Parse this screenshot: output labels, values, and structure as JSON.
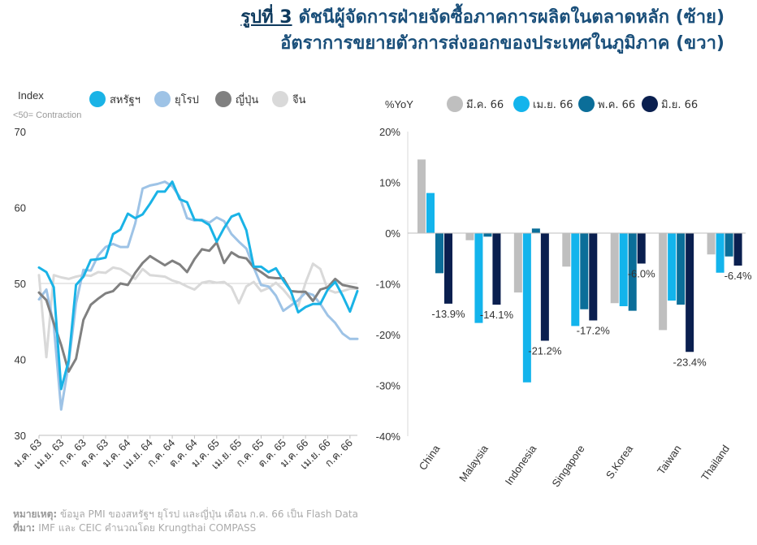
{
  "title": {
    "figure_label": "รูปที่ 3",
    "line1": "ดัชนีผู้จัดการฝ่ายจัดซื้อภาคการผลิตในตลาดหลัก (ซ้าย)",
    "line2": "อัตราการขยายตัวการส่งออกของประเทศในภูมิภาค (ขวา)"
  },
  "footer": {
    "note_label": "หมายเหตุ:",
    "note_text": "ข้อมูล PMI ของสหรัฐฯ ยุโรป และญี่ปุ่น เดือน ก.ค. 66 เป็น Flash Data",
    "source_label": "ที่มา:",
    "source_text": "IMF และ CEIC คำนวณโดย Krungthai COMPASS"
  },
  "chart_data": [
    {
      "type": "line",
      "ylabel": "Index",
      "note": "<50= Contraction",
      "ylim": [
        30,
        70
      ],
      "yticks": [
        30,
        40,
        50,
        60,
        70
      ],
      "reference_line": 50,
      "x_tick_labels": [
        "ม.ค. 63",
        "เม.ย. 63",
        "ก.ค. 63",
        "ต.ค. 63",
        "ม.ค. 64",
        "เม.ย. 64",
        "ก.ค. 64",
        "ต.ค. 64",
        "ม.ค. 65",
        "เม.ย. 65",
        "ก.ค. 65",
        "ต.ค. 65",
        "ม.ค. 66",
        "เม.ย. 66",
        "ก.ค. 66"
      ],
      "grid": false,
      "legend_position": "top",
      "series": [
        {
          "name": "สหรัฐฯ",
          "color": "#1ab3e6",
          "width": 3,
          "values": [
            52.1,
            51.5,
            49.5,
            36.1,
            39.8,
            49.8,
            50.9,
            53.1,
            53.2,
            53.4,
            56.5,
            57.1,
            59.2,
            58.6,
            59.1,
            60.5,
            62.1,
            62.1,
            63.4,
            61.1,
            60.7,
            58.4,
            58.3,
            57.7,
            55.5,
            57.3,
            58.8,
            59.2,
            57.0,
            52.2,
            52.2,
            51.5,
            52.0,
            50.4,
            49.0,
            46.2,
            46.9,
            47.3,
            47.3,
            49.2,
            50.2,
            48.4,
            46.3,
            49.0
          ]
        },
        {
          "name": "ยุโรป",
          "color": "#9ec3e6",
          "width": 3,
          "values": [
            47.9,
            49.2,
            44.5,
            33.4,
            39.4,
            47.4,
            51.8,
            51.7,
            53.7,
            54.8,
            55.2,
            54.8,
            54.8,
            57.9,
            62.5,
            62.9,
            63.1,
            63.4,
            62.8,
            61.4,
            58.6,
            58.3,
            58.4,
            58.0,
            58.7,
            58.2,
            56.5,
            55.5,
            54.6,
            52.1,
            49.8,
            49.6,
            48.4,
            46.4,
            47.1,
            47.8,
            48.8,
            48.5,
            47.3,
            45.8,
            44.8,
            43.4,
            42.7,
            42.7
          ]
        },
        {
          "name": "ญี่ปุ่น",
          "color": "#808080",
          "width": 3,
          "values": [
            48.8,
            47.8,
            44.8,
            41.9,
            38.4,
            40.1,
            45.2,
            47.2,
            48.0,
            48.7,
            49.0,
            50.0,
            49.8,
            51.4,
            52.7,
            53.6,
            53.0,
            52.4,
            53.0,
            52.5,
            51.5,
            53.2,
            54.5,
            54.3,
            55.4,
            52.7,
            54.1,
            53.5,
            53.3,
            52.1,
            51.5,
            50.8,
            50.7,
            50.7,
            49.0,
            48.9,
            48.9,
            47.7,
            49.2,
            49.5,
            50.6,
            49.8,
            49.6,
            49.4
          ]
        },
        {
          "name": "จีน",
          "color": "#d9d9d9",
          "width": 3,
          "values": [
            51.1,
            40.3,
            51.1,
            50.8,
            50.6,
            50.9,
            51.1,
            51.0,
            51.5,
            51.4,
            52.1,
            51.9,
            51.3,
            50.6,
            51.9,
            51.1,
            51.0,
            50.9,
            50.4,
            50.1,
            49.6,
            49.2,
            50.1,
            50.3,
            50.1,
            50.2,
            49.5,
            47.4,
            49.6,
            50.2,
            49.0,
            49.4,
            50.1,
            49.2,
            48.0,
            47.0,
            50.1,
            52.6,
            51.9,
            49.2,
            48.8,
            49.0,
            49.3,
            49.3
          ]
        }
      ]
    },
    {
      "type": "bar",
      "ylabel": "%YoY",
      "ylim": [
        -40,
        20
      ],
      "yticks": [
        "20%",
        "10%",
        "0%",
        "-10%",
        "-20%",
        "-30%",
        "-40%"
      ],
      "ytick_values": [
        20,
        10,
        0,
        -10,
        -20,
        -30,
        -40
      ],
      "legend_position": "top",
      "categories": [
        "China",
        "Malaysia",
        "Indonesia",
        "Singapore",
        "S.Korea",
        "Taiwan",
        "Thailand"
      ],
      "series": [
        {
          "name": "มี.ค. 66",
          "color": "#bfbfbf",
          "values": [
            14.5,
            -1.4,
            -11.7,
            -6.6,
            -13.8,
            -19.1,
            -4.2
          ]
        },
        {
          "name": "เม.ย. 66",
          "color": "#13b4ec",
          "values": [
            7.9,
            -17.7,
            -29.4,
            -18.3,
            -14.4,
            -13.3,
            -7.8
          ]
        },
        {
          "name": "พ.ค. 66",
          "color": "#0b6e99",
          "values": [
            -7.9,
            -0.7,
            0.9,
            -15.0,
            -15.3,
            -14.1,
            -4.6
          ]
        },
        {
          "name": "มิ.ย. 66",
          "color": "#0a1f4f",
          "values": [
            -13.9,
            -14.1,
            -21.2,
            -17.2,
            -6.0,
            -23.4,
            -6.4
          ]
        }
      ],
      "data_labels": [
        "-13.9%",
        "-14.1%",
        "-21.2%",
        "-17.2%",
        "-6.0%",
        "-23.4%",
        "-6.4%"
      ]
    }
  ]
}
